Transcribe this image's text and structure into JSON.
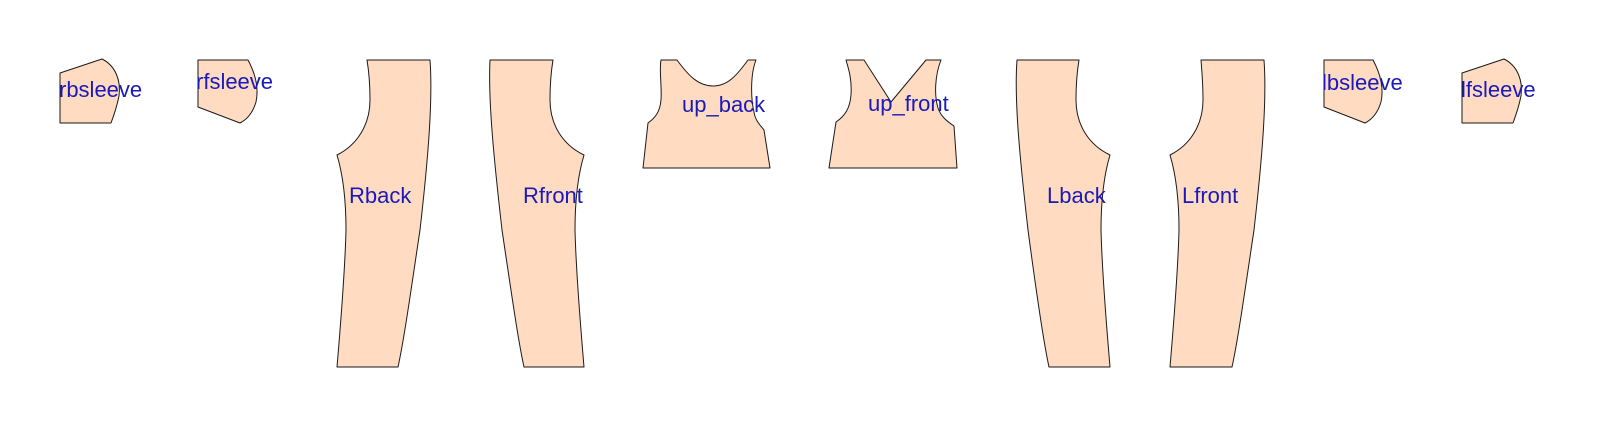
{
  "colors": {
    "background": "#ffffff",
    "piece_fill": "#ffdbc2",
    "piece_stroke": "#1a1a1a",
    "label": "#1a1ab8"
  },
  "pieces": [
    {
      "id": "rbsleeve",
      "label": "rbsleeve"
    },
    {
      "id": "rfsleeve",
      "label": "rfsleeve"
    },
    {
      "id": "rback",
      "label": "Rback"
    },
    {
      "id": "rfront",
      "label": "Rfront"
    },
    {
      "id": "up-back",
      "label": "up_back"
    },
    {
      "id": "up-front",
      "label": "up_front"
    },
    {
      "id": "lback",
      "label": "Lback"
    },
    {
      "id": "lfront",
      "label": "Lfront"
    },
    {
      "id": "lbsleeve",
      "label": "lbsleeve"
    },
    {
      "id": "lfsleeve",
      "label": "lfsleeve"
    }
  ]
}
